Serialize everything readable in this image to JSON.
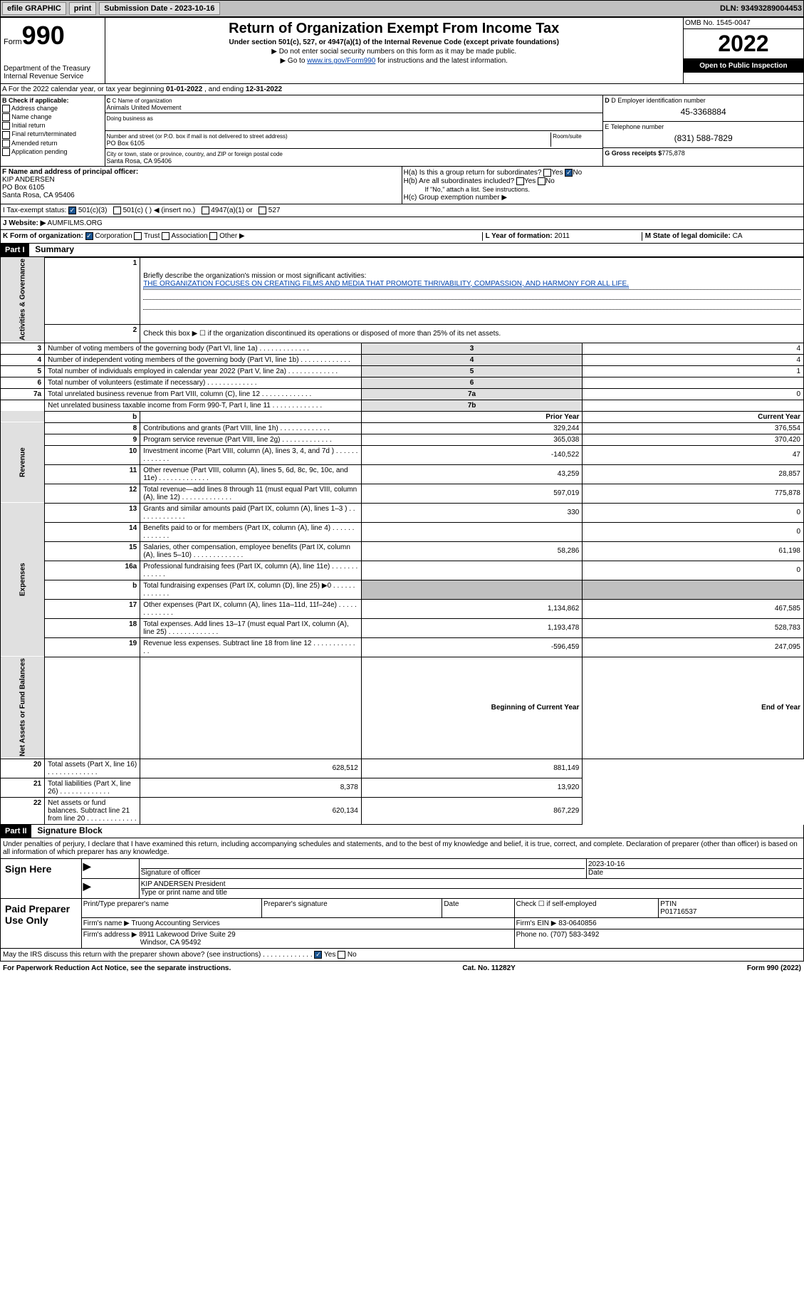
{
  "header": {
    "efile": "efile GRAPHIC",
    "print": "print",
    "sub_label": "Submission Date - 2023-10-16",
    "dln": "DLN: 93493289004453"
  },
  "top": {
    "form": "Form",
    "num": "990",
    "title": "Return of Organization Exempt From Income Tax",
    "sub1": "Under section 501(c), 527, or 4947(a)(1) of the Internal Revenue Code (except private foundations)",
    "sub2": "▶ Do not enter social security numbers on this form as it may be made public.",
    "sub3_pre": "▶ Go to ",
    "sub3_link": "www.irs.gov/Form990",
    "sub3_post": " for instructions and the latest information.",
    "dept": "Department of the Treasury\nInternal Revenue Service",
    "omb": "OMB No. 1545-0047",
    "year": "2022",
    "open": "Open to Public Inspection"
  },
  "lineA": {
    "pre": "A For the 2022 calendar year, or tax year beginning ",
    "begin": "01-01-2022",
    "mid": "  , and ending ",
    "end": "12-31-2022"
  },
  "blockB": {
    "title": "B Check if applicable:",
    "items": [
      "Address change",
      "Name change",
      "Initial return",
      "Final return/terminated",
      "Amended return",
      "Application pending"
    ]
  },
  "blockC": {
    "name_lbl": "C Name of organization",
    "name": "Animals United Movement",
    "dba_lbl": "Doing business as",
    "addr_lbl": "Number and street (or P.O. box if mail is not delivered to street address)",
    "room_lbl": "Room/suite",
    "addr": "PO Box 6105",
    "city_lbl": "City or town, state or province, country, and ZIP or foreign postal code",
    "city": "Santa Rosa, CA  95406"
  },
  "blockD": {
    "ein_lbl": "D Employer identification number",
    "ein": "45-3368884",
    "tel_lbl": "E Telephone number",
    "tel": "(831) 588-7829",
    "gross_lbl": "G Gross receipts $",
    "gross": "775,878"
  },
  "blockF": {
    "lbl": "F Name and address of principal officer:",
    "name": "KIP ANDERSEN",
    "addr": "PO Box 6105",
    "city": "Santa Rosa, CA  95406"
  },
  "blockH": {
    "a_lbl": "H(a)  Is this a group return for subordinates?",
    "b_lbl": "H(b)  Are all subordinates included?",
    "b_note": "If \"No,\" attach a list. See instructions.",
    "c_lbl": "H(c)  Group exemption number ▶"
  },
  "lineI_lbl": "I    Tax-exempt status:",
  "lineI_opts": [
    "501(c)(3)",
    "501(c) (  ) ◀ (insert no.)",
    "4947(a)(1) or",
    "527"
  ],
  "lineJ_lbl": "J    Website: ▶",
  "lineJ_val": "AUMFILMS.ORG",
  "lineK_lbl": "K Form of organization:",
  "lineK_opts": [
    "Corporation",
    "Trust",
    "Association",
    "Other ▶"
  ],
  "lineL_lbl": "L Year of formation:",
  "lineL_val": "2011",
  "lineM_lbl": "M State of legal domicile:",
  "lineM_val": "CA",
  "part1": {
    "hdr": "Part I",
    "title": "Summary",
    "sections": {
      "ag": "Activities & Governance",
      "rev": "Revenue",
      "exp": "Expenses",
      "na": "Net Assets or Fund Balances"
    },
    "line1_lbl": "Briefly describe the organization's mission or most significant activities:",
    "line1_val": "THE ORGANIZATION FOCUSES ON CREATING FILMS AND MEDIA THAT PROMOTE THRIVABILITY, COMPASSION, AND HARMONY FOR ALL LIFE.",
    "line2": "Check this box ▶ ☐  if the organization discontinued its operations or disposed of more than 25% of its net assets.",
    "rows_ag": [
      {
        "n": "3",
        "d": "Number of voting members of the governing body (Part VI, line 1a)",
        "r": "3",
        "v": "4"
      },
      {
        "n": "4",
        "d": "Number of independent voting members of the governing body (Part VI, line 1b)",
        "r": "4",
        "v": "4"
      },
      {
        "n": "5",
        "d": "Total number of individuals employed in calendar year 2022 (Part V, line 2a)",
        "r": "5",
        "v": "1"
      },
      {
        "n": "6",
        "d": "Total number of volunteers (estimate if necessary)",
        "r": "6",
        "v": ""
      },
      {
        "n": "7a",
        "d": "Total unrelated business revenue from Part VIII, column (C), line 12",
        "r": "7a",
        "v": "0"
      },
      {
        "n": "",
        "d": "Net unrelated business taxable income from Form 990-T, Part I, line 11",
        "r": "7b",
        "v": ""
      }
    ],
    "col_hdr": {
      "b": "b",
      "py": "Prior Year",
      "cy": "Current Year"
    },
    "rows_rev": [
      {
        "n": "8",
        "d": "Contributions and grants (Part VIII, line 1h)",
        "py": "329,244",
        "cy": "376,554"
      },
      {
        "n": "9",
        "d": "Program service revenue (Part VIII, line 2g)",
        "py": "365,038",
        "cy": "370,420"
      },
      {
        "n": "10",
        "d": "Investment income (Part VIII, column (A), lines 3, 4, and 7d )",
        "py": "-140,522",
        "cy": "47"
      },
      {
        "n": "11",
        "d": "Other revenue (Part VIII, column (A), lines 5, 6d, 8c, 9c, 10c, and 11e)",
        "py": "43,259",
        "cy": "28,857"
      },
      {
        "n": "12",
        "d": "Total revenue—add lines 8 through 11 (must equal Part VIII, column (A), line 12)",
        "py": "597,019",
        "cy": "775,878"
      }
    ],
    "rows_exp": [
      {
        "n": "13",
        "d": "Grants and similar amounts paid (Part IX, column (A), lines 1–3 )",
        "py": "330",
        "cy": "0"
      },
      {
        "n": "14",
        "d": "Benefits paid to or for members (Part IX, column (A), line 4)",
        "py": "",
        "cy": "0"
      },
      {
        "n": "15",
        "d": "Salaries, other compensation, employee benefits (Part IX, column (A), lines 5–10)",
        "py": "58,286",
        "cy": "61,198"
      },
      {
        "n": "16a",
        "d": "Professional fundraising fees (Part IX, column (A), line 11e)",
        "py": "",
        "cy": "0"
      },
      {
        "n": "b",
        "d": "Total fundraising expenses (Part IX, column (D), line 25) ▶0",
        "py": "SHADE",
        "cy": "SHADE"
      },
      {
        "n": "17",
        "d": "Other expenses (Part IX, column (A), lines 11a–11d, 11f–24e)",
        "py": "1,134,862",
        "cy": "467,585"
      },
      {
        "n": "18",
        "d": "Total expenses. Add lines 13–17 (must equal Part IX, column (A), line 25)",
        "py": "1,193,478",
        "cy": "528,783"
      },
      {
        "n": "19",
        "d": "Revenue less expenses. Subtract line 18 from line 12",
        "py": "-596,459",
        "cy": "247,095"
      }
    ],
    "na_hdr": {
      "b": "Beginning of Current Year",
      "e": "End of Year"
    },
    "rows_na": [
      {
        "n": "20",
        "d": "Total assets (Part X, line 16)",
        "py": "628,512",
        "cy": "881,149"
      },
      {
        "n": "21",
        "d": "Total liabilities (Part X, line 26)",
        "py": "8,378",
        "cy": "13,920"
      },
      {
        "n": "22",
        "d": "Net assets or fund balances. Subtract line 21 from line 20",
        "py": "620,134",
        "cy": "867,229"
      }
    ]
  },
  "part2": {
    "hdr": "Part II",
    "title": "Signature Block",
    "decl": "Under penalties of perjury, I declare that I have examined this return, including accompanying schedules and statements, and to the best of my knowledge and belief, it is true, correct, and complete. Declaration of preparer (other than officer) is based on all information of which preparer has any knowledge.",
    "sign_here": "Sign Here",
    "sig_lbl": "Signature of officer",
    "date_lbl": "Date",
    "date_val": "2023-10-16",
    "name_val": "KIP ANDERSEN President",
    "name_lbl": "Type or print name and title",
    "paid": "Paid Preparer Use Only",
    "prep_name_lbl": "Print/Type preparer's name",
    "prep_sig_lbl": "Preparer's signature",
    "prep_date_lbl": "Date",
    "check_lbl": "Check ☐ if self-employed",
    "ptin_lbl": "PTIN",
    "ptin_val": "P01716537",
    "firm_name_lbl": "Firm's name    ▶",
    "firm_name": "Truong Accounting Services",
    "firm_ein_lbl": "Firm's EIN ▶",
    "firm_ein": "83-0640856",
    "firm_addr_lbl": "Firm's address ▶",
    "firm_addr": "8911 Lakewood Drive Suite 29",
    "firm_city": "Windsor, CA  95492",
    "phone_lbl": "Phone no.",
    "phone": "(707) 583-3492",
    "may_irs": "May the IRS discuss this return with the preparer shown above? (see instructions)"
  },
  "footer": {
    "left": "For Paperwork Reduction Act Notice, see the separate instructions.",
    "mid": "Cat. No. 11282Y",
    "right": "Form 990 (2022)"
  }
}
